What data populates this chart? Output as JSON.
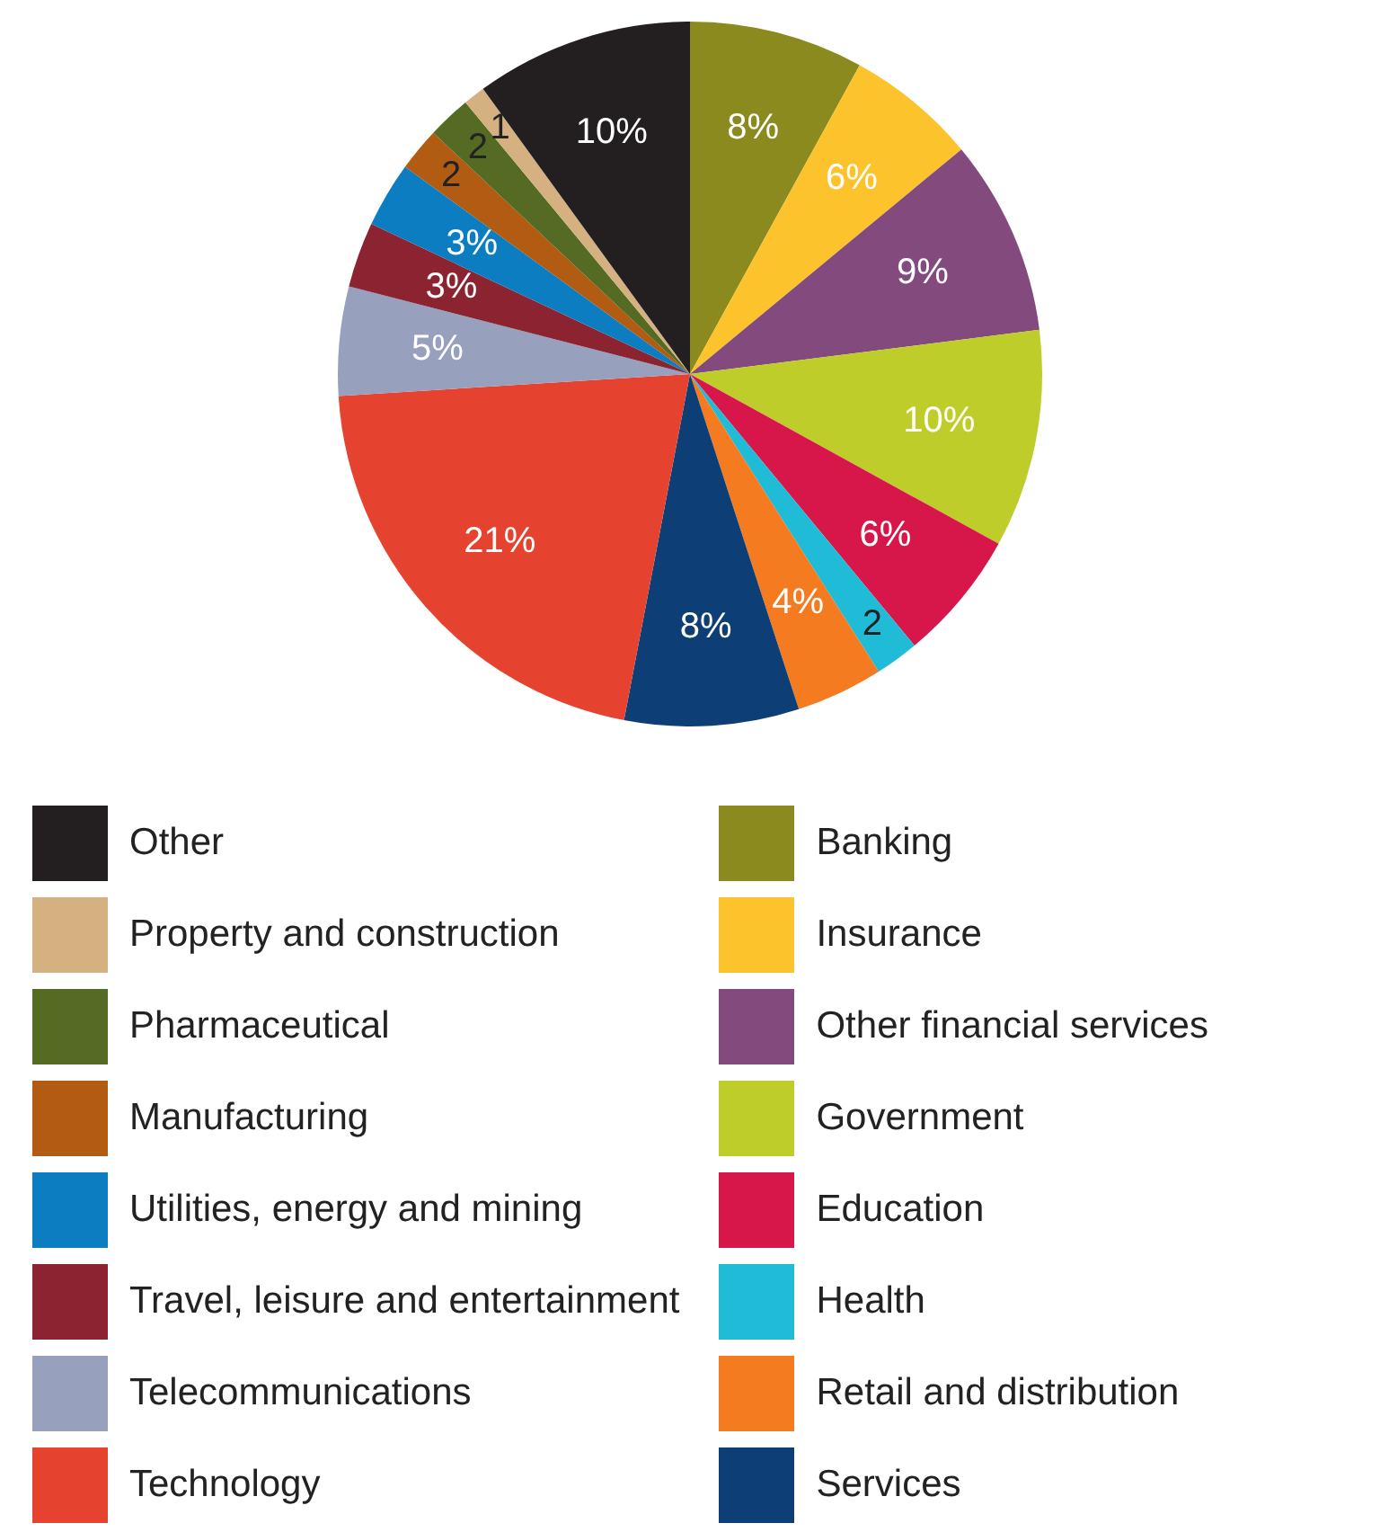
{
  "chart_data": {
    "type": "pie",
    "legend": "bottom",
    "categories": [
      "Banking",
      "Insurance",
      "Other financial services",
      "Government",
      "Education",
      "Health",
      "Retail and distribution",
      "Services",
      "Technology",
      "Telecommunications",
      "Travel, leisure and entertainment",
      "Utilities, energy and mining",
      "Manufacturing",
      "Pharmaceutical",
      "Property and construction",
      "Other"
    ],
    "values": [
      8,
      6,
      9,
      10,
      6,
      2,
      4,
      8,
      21,
      5,
      3,
      3,
      2,
      2,
      1,
      10
    ],
    "value_labels": [
      "8%",
      "6%",
      "9%",
      "10%",
      "6%",
      "2",
      "4%",
      "8%",
      "21%",
      "5%",
      "3%",
      "3%",
      "2",
      "2",
      "1",
      "10%"
    ],
    "colors": [
      "#8b8a1f",
      "#fdc32d",
      "#834a7e",
      "#bfcd2a",
      "#d7174a",
      "#20bcd7",
      "#f47b20",
      "#0d3e75",
      "#e5432f",
      "#97a0bd",
      "#8c2330",
      "#0c7dc0",
      "#b15b13",
      "#556b23",
      "#d5b182",
      "#231f20"
    ]
  }
}
